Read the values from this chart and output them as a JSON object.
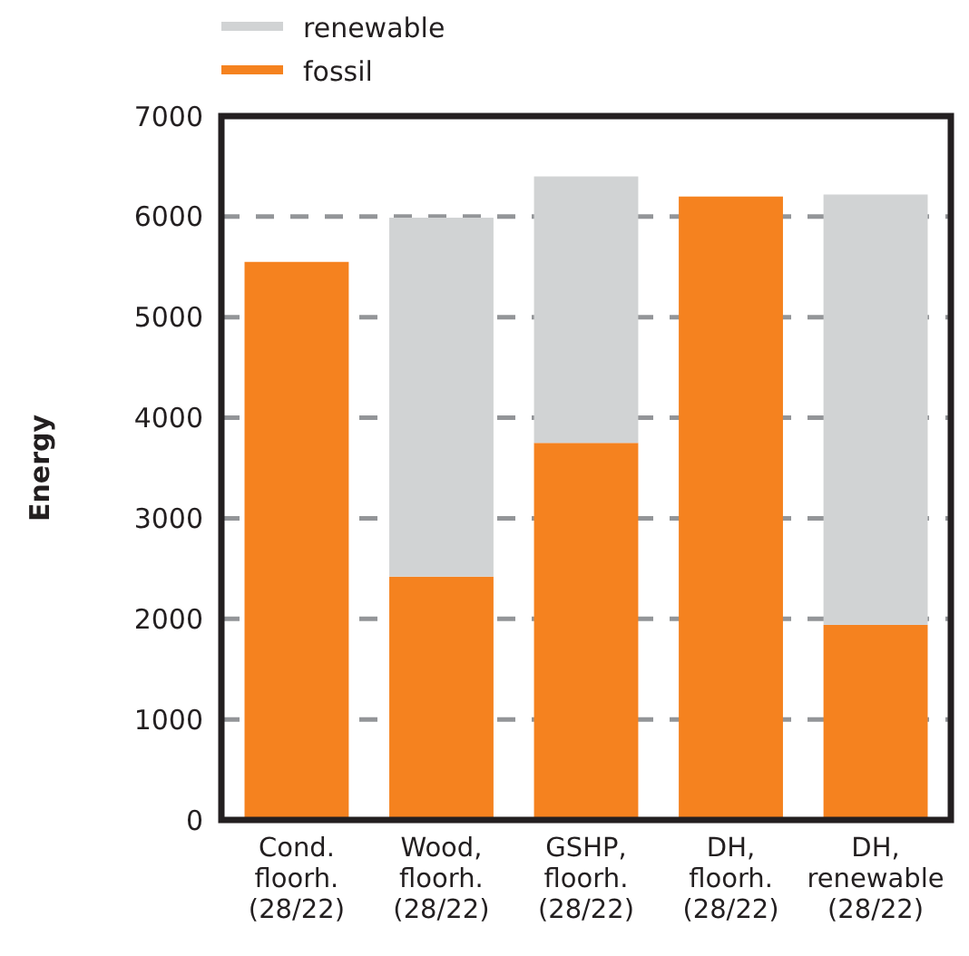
{
  "chart_data": {
    "type": "bar",
    "stacked": true,
    "ylabel": "Energy",
    "categories": [
      "Cond.\nfloorh.\n(28/22)",
      "Wood,\nfloorh.\n(28/22)",
      "GSHP,\nfloorh.\n(28/22)",
      "DH,\nfloorh.\n(28/22)",
      "DH,\nrenewable\n(28/22)"
    ],
    "series": [
      {
        "name": "fossil",
        "color": "#f5821f",
        "values": [
          5550,
          2420,
          3750,
          6200,
          1940
        ]
      },
      {
        "name": "renewable",
        "color": "#d1d3d4",
        "values": [
          0,
          3570,
          2650,
          0,
          4280
        ]
      }
    ],
    "ylim": [
      0,
      7000
    ],
    "yticks": [
      0,
      1000,
      2000,
      3000,
      4000,
      5000,
      6000,
      7000
    ],
    "grid": "y",
    "legend": "top left"
  }
}
